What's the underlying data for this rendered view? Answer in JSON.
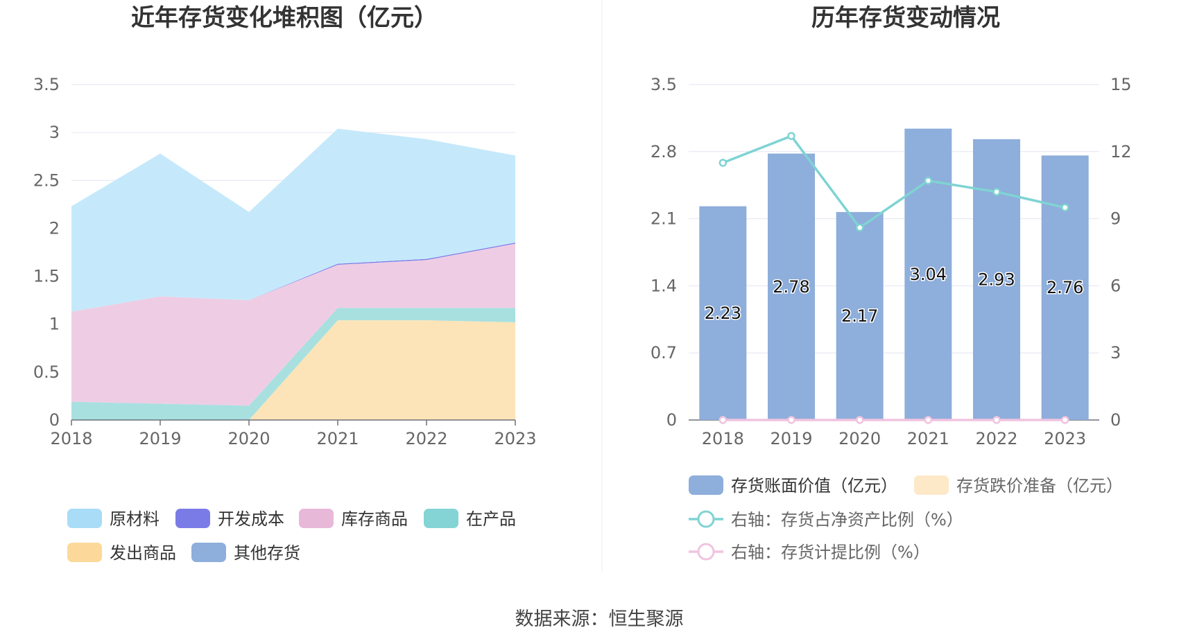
{
  "left_chart": {
    "title": "近年存货变化堆积图（亿元）",
    "chart_data": {
      "type": "area",
      "stacked": true,
      "x": [
        "2018",
        "2019",
        "2020",
        "2021",
        "2022",
        "2023"
      ],
      "ylim": [
        0,
        3.5
      ],
      "yticks": [
        "0",
        "0.5",
        "1",
        "1.5",
        "2",
        "2.5",
        "3",
        "3.5"
      ],
      "grid": true,
      "legend_position": "bottom",
      "series": [
        {
          "name": "发出商品",
          "color": "#fce4b8",
          "values": [
            0.0,
            0.0,
            0.0,
            1.04,
            1.04,
            1.02
          ]
        },
        {
          "name": "在产品",
          "color": "#a8e0e0",
          "values": [
            0.19,
            0.17,
            0.15,
            0.13,
            0.13,
            0.15
          ]
        },
        {
          "name": "库存商品",
          "color": "#eecde4",
          "values": [
            0.94,
            1.12,
            1.1,
            0.45,
            0.5,
            0.67
          ]
        },
        {
          "name": "开发成本",
          "color": "#7b7be8",
          "values": [
            0.0,
            0.0,
            0.0,
            0.01,
            0.01,
            0.01
          ]
        },
        {
          "name": "原材料",
          "color": "#c5e9fb",
          "values": [
            1.1,
            1.49,
            0.92,
            1.41,
            1.25,
            0.91
          ]
        },
        {
          "name": "其他存货",
          "color": "#8eaedb",
          "values": [
            0.0,
            0.0,
            0.0,
            0.0,
            0.0,
            0.0
          ]
        }
      ]
    },
    "legend": [
      {
        "label": "原材料",
        "color": "#a8dcf7"
      },
      {
        "label": "开发成本",
        "color": "#7b7be8"
      },
      {
        "label": "库存商品",
        "color": "#e8b8d8"
      },
      {
        "label": "在产品",
        "color": "#84d4d6"
      },
      {
        "label": "发出商品",
        "color": "#fcd99a"
      },
      {
        "label": "其他存货",
        "color": "#8eaedb"
      }
    ]
  },
  "right_chart": {
    "title": "历年存货变动情况",
    "chart_data": {
      "type": "bar",
      "categories": [
        "2018",
        "2019",
        "2020",
        "2021",
        "2022",
        "2023"
      ],
      "ylim": [
        0,
        3.5
      ],
      "yticks": [
        "0",
        "0.7",
        "1.4",
        "2.1",
        "2.8",
        "3.5"
      ],
      "y2lim": [
        0,
        15
      ],
      "y2ticks": [
        "0",
        "3",
        "6",
        "9",
        "12",
        "15"
      ],
      "grid": true,
      "legend_position": "bottom",
      "series": [
        {
          "name": "存货账面价值（亿元）",
          "kind": "bar",
          "axis": "left",
          "color": "#8eaedb",
          "values": [
            2.23,
            2.78,
            2.17,
            3.04,
            2.93,
            2.76
          ],
          "labels": [
            "2.23",
            "2.78",
            "2.17",
            "3.04",
            "2.93",
            "2.76"
          ]
        },
        {
          "name": "存货跌价准备（亿元）",
          "kind": "bar",
          "axis": "left",
          "color": "#fde8c8",
          "values": [
            0,
            0,
            0,
            0,
            0,
            0
          ]
        },
        {
          "name": "右轴：存货占净资产比例（%）",
          "kind": "line",
          "axis": "right",
          "color": "#7fd3d3",
          "values": [
            11.5,
            12.7,
            8.6,
            10.7,
            10.2,
            9.5
          ]
        },
        {
          "name": "右轴：存货计提比例（%）",
          "kind": "line",
          "axis": "right",
          "color": "#f0c4e0",
          "values": [
            0,
            0,
            0,
            0,
            0,
            0
          ]
        }
      ]
    }
  },
  "source": "数据来源：恒生聚源"
}
